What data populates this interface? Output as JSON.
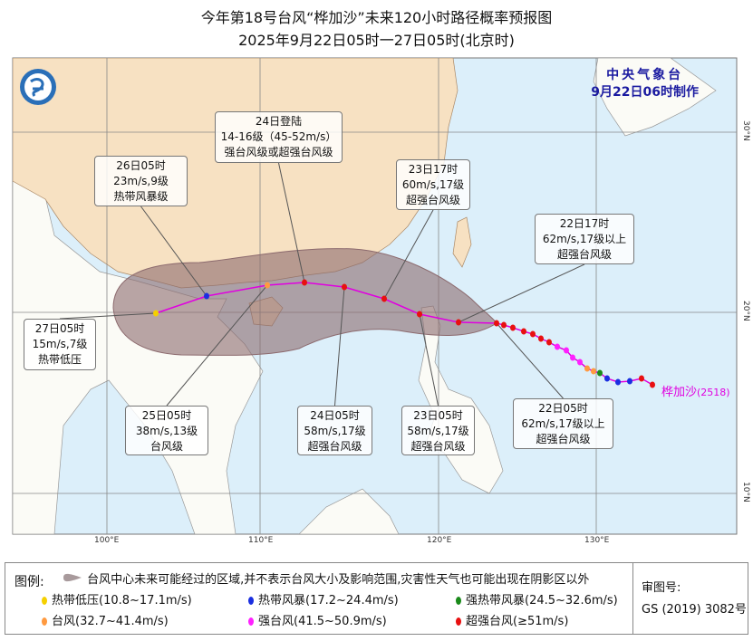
{
  "title": {
    "line1": "今年第18号台风“桦加沙”未来120小时路径概率预报图",
    "line2": "2025年9月22日05时一27日05时(北京时)"
  },
  "agency": {
    "name": "中央气象台",
    "issued": "9月22日06时制作"
  },
  "typhoon": {
    "name": "桦加沙",
    "code": "(2518)"
  },
  "axes": {
    "lon": [
      "100°E",
      "110°E",
      "120°E",
      "130°E"
    ],
    "lat": [
      "30°N",
      "20°N",
      "10°N"
    ]
  },
  "callouts": [
    {
      "id": "landfall",
      "lines": [
        "24日登陆",
        "14-16级（45-52m/s）",
        "强台风级或超强台风级"
      ]
    },
    {
      "id": "d26",
      "lines": [
        "26日05时",
        "23m/s,9级",
        "热带风暴级"
      ]
    },
    {
      "id": "d23-17",
      "lines": [
        "23日17时",
        "60m/s,17级",
        "超强台风级"
      ]
    },
    {
      "id": "d22-17",
      "lines": [
        "22日17时",
        "62m/s,17级以上",
        "超强台风级"
      ]
    },
    {
      "id": "d27",
      "lines": [
        "27日05时",
        "15m/s,7级",
        "热带低压"
      ]
    },
    {
      "id": "d25",
      "lines": [
        "25日05时",
        "38m/s,13级",
        "台风级"
      ]
    },
    {
      "id": "d24",
      "lines": [
        "24日05时",
        "58m/s,17级",
        "超强台风级"
      ]
    },
    {
      "id": "d23-05",
      "lines": [
        "23日05时",
        "58m/s,17级",
        "超强台风级"
      ]
    },
    {
      "id": "d22-05",
      "lines": [
        "22日05时",
        "62m/s,17级以上",
        "超强台风级"
      ]
    }
  ],
  "legend": {
    "heading": "图例:",
    "cone": "台风中心未来可能经过的区域,并不表示台风大小及影响范围,灾害性天气也可能出现在阴影区以外",
    "categories": [
      {
        "label": "热带低压(10.8~17.1m/s)",
        "color": "#f5d000"
      },
      {
        "label": "热带风暴(17.2~24.4m/s)",
        "color": "#1a2ee0"
      },
      {
        "label": "强热带风暴(24.5~32.6m/s)",
        "color": "#1a8a1a"
      },
      {
        "label": "台风(32.7~41.4m/s)",
        "color": "#ff9a40"
      },
      {
        "label": "强台风(41.5~50.9m/s)",
        "color": "#ff20ff"
      },
      {
        "label": "超强台风(≥51m/s)",
        "color": "#e81010"
      }
    ],
    "review_label": "审图号:",
    "review_no": "GS (2019) 3082号"
  },
  "colors": {
    "sea": "#dcefFa",
    "china": "#f7e1c2",
    "cone": "#8c6a6e",
    "track": "#e000e0"
  }
}
